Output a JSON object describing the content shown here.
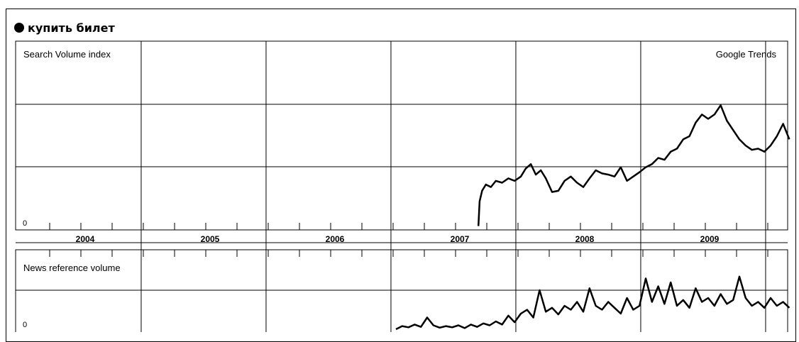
{
  "legend": {
    "term": "купить билет",
    "color": "#000000"
  },
  "chart_data": [
    {
      "type": "line",
      "title": "Search Volume index",
      "watermark": "Google Trends",
      "y_zero_label": "0",
      "x_labels": [
        "2004",
        "2005",
        "2006",
        "2007",
        "2008",
        "2009"
      ],
      "xlim": [
        2004.0,
        2010.17
      ],
      "ylim": [
        0,
        3
      ],
      "grid": true,
      "series": [
        {
          "name": "купить билет",
          "x": [
            2007.66,
            2007.67,
            2007.69,
            2007.72,
            2007.76,
            2007.8,
            2007.85,
            2007.9,
            2007.95,
            2008.0,
            2008.04,
            2008.08,
            2008.12,
            2008.16,
            2008.2,
            2008.25,
            2008.3,
            2008.35,
            2008.4,
            2008.45,
            2008.5,
            2008.55,
            2008.6,
            2008.65,
            2008.7,
            2008.75,
            2008.8,
            2008.85,
            2008.9,
            2008.95,
            2009.0,
            2009.05,
            2009.1,
            2009.15,
            2009.2,
            2009.25,
            2009.3,
            2009.35,
            2009.4,
            2009.45,
            2009.5,
            2009.55,
            2009.6,
            2009.65,
            2009.7,
            2009.75,
            2009.8,
            2009.85,
            2009.9,
            2009.95,
            2010.0,
            2010.05,
            2010.1,
            2010.15
          ],
          "values": [
            0.05,
            0.45,
            0.62,
            0.72,
            0.68,
            0.78,
            0.75,
            0.82,
            0.78,
            0.85,
            0.98,
            1.05,
            0.88,
            0.95,
            0.82,
            0.6,
            0.62,
            0.78,
            0.85,
            0.75,
            0.68,
            0.82,
            0.95,
            0.9,
            0.88,
            0.85,
            1.0,
            0.78,
            0.85,
            0.92,
            1.0,
            1.05,
            1.15,
            1.12,
            1.25,
            1.3,
            1.45,
            1.5,
            1.72,
            1.85,
            1.78,
            1.85,
            2.0,
            1.75,
            1.6,
            1.45,
            1.35,
            1.28,
            1.3,
            1.25,
            1.35,
            1.5,
            1.7,
            1.45
          ]
        }
      ]
    },
    {
      "type": "line",
      "title": "News reference volume",
      "y_zero_label": "0",
      "x_labels": [],
      "xlim": [
        2004.0,
        2010.17
      ],
      "ylim": [
        0,
        2
      ],
      "grid": true,
      "series": [
        {
          "name": "купить билет",
          "x": [
            2007.0,
            2007.05,
            2007.1,
            2007.15,
            2007.2,
            2007.25,
            2007.3,
            2007.35,
            2007.4,
            2007.45,
            2007.5,
            2007.55,
            2007.6,
            2007.65,
            2007.7,
            2007.75,
            2007.8,
            2007.85,
            2007.9,
            2007.95,
            2008.0,
            2008.05,
            2008.1,
            2008.15,
            2008.2,
            2008.25,
            2008.3,
            2008.35,
            2008.4,
            2008.45,
            2008.5,
            2008.55,
            2008.6,
            2008.65,
            2008.7,
            2008.75,
            2008.8,
            2008.85,
            2008.9,
            2008.95,
            2009.0,
            2009.05,
            2009.1,
            2009.15,
            2009.2,
            2009.25,
            2009.3,
            2009.35,
            2009.4,
            2009.45,
            2009.5,
            2009.55,
            2009.6,
            2009.65,
            2009.7,
            2009.75,
            2009.8,
            2009.85,
            2009.9,
            2009.95,
            2010.0,
            2010.05,
            2010.1,
            2010.15
          ],
          "values": [
            0.0,
            0.08,
            0.05,
            0.12,
            0.06,
            0.3,
            0.1,
            0.04,
            0.08,
            0.05,
            0.1,
            0.03,
            0.12,
            0.06,
            0.15,
            0.1,
            0.2,
            0.12,
            0.35,
            0.18,
            0.4,
            0.5,
            0.3,
            1.0,
            0.45,
            0.55,
            0.38,
            0.6,
            0.5,
            0.7,
            0.45,
            1.05,
            0.6,
            0.5,
            0.7,
            0.55,
            0.4,
            0.8,
            0.5,
            0.6,
            1.3,
            0.7,
            1.1,
            0.65,
            1.2,
            0.6,
            0.75,
            0.55,
            1.05,
            0.7,
            0.8,
            0.6,
            0.9,
            0.65,
            0.75,
            1.35,
            0.8,
            0.6,
            0.7,
            0.55,
            0.8,
            0.6,
            0.7,
            0.55
          ]
        }
      ]
    }
  ]
}
